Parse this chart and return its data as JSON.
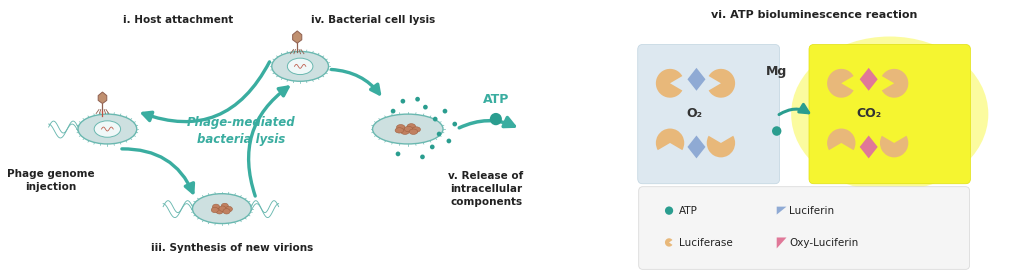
{
  "bg_color": "#ffffff",
  "teal_color": "#3aada0",
  "teal_text_color": "#3aada0",
  "dark_teal": "#2a9d8f",
  "luciferase_color": "#e8b87a",
  "luciferin_color": "#8faad4",
  "oxy_luciferin_color": "#e07898",
  "atp_dot_color": "#2a9d8f",
  "left_box_color": "#d8e5ee",
  "right_box_color": "#f8f840",
  "arrow_color": "#3aada0",
  "label_i": "i. Host attachment",
  "label_ii": "Phage genome\ninjection",
  "label_iii": "iii. Synthesis of new virions",
  "label_iv": "iv. Bacterial cell lysis",
  "label_v": "v. Release of\nintracellular\ncomponents",
  "label_center": "Phage-mediated\nbacteria lysis",
  "label_vi": "vi. ATP bioluminescence reaction",
  "label_atp_arrow": "ATP",
  "label_mg": "Mg",
  "label_o2": "O₂",
  "label_co2": "CO₂",
  "legend_atp": "ATP",
  "legend_luciferin": "Luciferin",
  "legend_luciferase": "Luciferase",
  "legend_oxy": "Oxy-Luciferin",
  "fig_width": 10.24,
  "fig_height": 2.71
}
